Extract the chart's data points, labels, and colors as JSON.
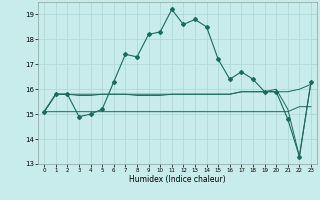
{
  "xlabel": "Humidex (Indice chaleur)",
  "bg_color": "#c8ecec",
  "grid_color": "#aed4d4",
  "line_color": "#1a6b5a",
  "x_values": [
    0,
    1,
    2,
    3,
    4,
    5,
    6,
    7,
    8,
    9,
    10,
    11,
    12,
    13,
    14,
    15,
    16,
    17,
    18,
    19,
    20,
    21,
    22,
    23
  ],
  "series1": [
    15.1,
    15.8,
    15.8,
    14.9,
    15.0,
    15.2,
    16.3,
    17.4,
    17.3,
    18.2,
    18.3,
    19.2,
    18.6,
    18.8,
    18.5,
    17.2,
    16.4,
    16.7,
    16.4,
    15.9,
    15.9,
    14.8,
    13.3,
    16.3
  ],
  "series2": [
    15.1,
    15.8,
    15.8,
    15.75,
    15.75,
    15.8,
    15.8,
    15.8,
    15.75,
    15.75,
    15.75,
    15.8,
    15.8,
    15.8,
    15.8,
    15.8,
    15.8,
    15.9,
    15.9,
    15.9,
    15.9,
    15.9,
    16.0,
    16.2
  ],
  "series3": [
    15.1,
    15.1,
    15.1,
    15.1,
    15.1,
    15.1,
    15.1,
    15.1,
    15.1,
    15.1,
    15.1,
    15.1,
    15.1,
    15.1,
    15.1,
    15.1,
    15.1,
    15.1,
    15.1,
    15.1,
    15.1,
    15.1,
    15.3,
    15.3
  ],
  "series4": [
    15.1,
    15.8,
    15.8,
    15.8,
    15.8,
    15.8,
    15.8,
    15.8,
    15.8,
    15.8,
    15.8,
    15.8,
    15.8,
    15.8,
    15.8,
    15.8,
    15.8,
    15.9,
    15.9,
    15.9,
    16.0,
    15.2,
    13.3,
    16.3
  ],
  "ylim": [
    13,
    19.5
  ],
  "xlim": [
    -0.5,
    23.5
  ],
  "yticks": [
    13,
    14,
    15,
    16,
    17,
    18,
    19
  ],
  "xticks": [
    0,
    1,
    2,
    3,
    4,
    5,
    6,
    7,
    8,
    9,
    10,
    11,
    12,
    13,
    14,
    15,
    16,
    17,
    18,
    19,
    20,
    21,
    22,
    23
  ]
}
